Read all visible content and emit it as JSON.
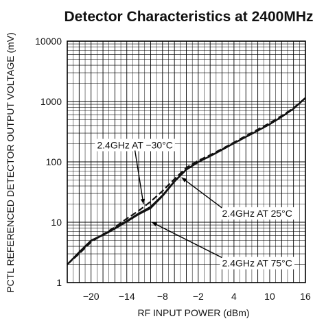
{
  "chart_data": {
    "type": "line",
    "title": "Detector Characteristics at 2400MHz",
    "xlabel": "RF INPUT POWER (dBm)",
    "ylabel": "PCTL REFERENCED DETECTOR OUTPUT VOLTAGE (mV)",
    "xlim": [
      -24,
      16
    ],
    "ylim": [
      1,
      10000
    ],
    "yscale": "log",
    "grid": true,
    "x_ticks": [
      -20,
      -14,
      -8,
      -2,
      4,
      10,
      16
    ],
    "y_ticks": [
      1,
      10,
      100,
      1000,
      10000
    ],
    "series": [
      {
        "name": "2.4GHz AT −30°C",
        "style": "dashed",
        "x": [
          -24,
          -22,
          -20,
          -18,
          -16,
          -14,
          -12,
          -10,
          -8,
          -6,
          -4,
          -2,
          0,
          2,
          4,
          6,
          8,
          10,
          12,
          14,
          16
        ],
        "y": [
          2.0,
          3.0,
          4.7,
          6.3,
          8.3,
          11.5,
          15.5,
          22,
          33,
          52,
          80,
          105,
          130,
          165,
          210,
          270,
          345,
          440,
          580,
          780,
          1150
        ]
      },
      {
        "name": "2.4GHz AT 25°C",
        "style": "solid",
        "x": [
          -24,
          -22,
          -20,
          -18,
          -16,
          -14,
          -12,
          -10,
          -8,
          -6,
          -4,
          -2,
          0,
          2,
          4,
          6,
          8,
          10,
          12,
          14,
          16
        ],
        "y": [
          2.0,
          3.2,
          5.0,
          6.2,
          8.0,
          10.5,
          14.0,
          18,
          28,
          48,
          75,
          100,
          125,
          160,
          205,
          260,
          330,
          420,
          560,
          760,
          1150
        ]
      },
      {
        "name": "2.4GHz AT 75°C",
        "style": "solid",
        "x": [
          -24,
          -22,
          -20,
          -18,
          -16,
          -14,
          -12,
          -10,
          -8,
          -6,
          -4,
          -2,
          0,
          2,
          4,
          6,
          8,
          10,
          12,
          14,
          16
        ],
        "y": [
          2.0,
          3.1,
          4.9,
          6.1,
          7.8,
          10.2,
          13.5,
          17,
          27,
          47,
          74,
          99,
          124,
          158,
          203,
          258,
          328,
          418,
          555,
          755,
          1140
        ]
      }
    ],
    "annotations": [
      {
        "text": "2.4GHz AT −30°C",
        "x": -19,
        "y": 190,
        "arrow_to": [
          -11.2,
          20
        ]
      },
      {
        "text": "2.4GHz AT 25°C",
        "x": 2,
        "y": 14,
        "arrow_to": [
          -4.8,
          55
        ]
      },
      {
        "text": "2.4GHz AT 75°C",
        "x": 2,
        "y": 2.1,
        "arrow_to": [
          -9.8,
          10
        ]
      }
    ]
  }
}
